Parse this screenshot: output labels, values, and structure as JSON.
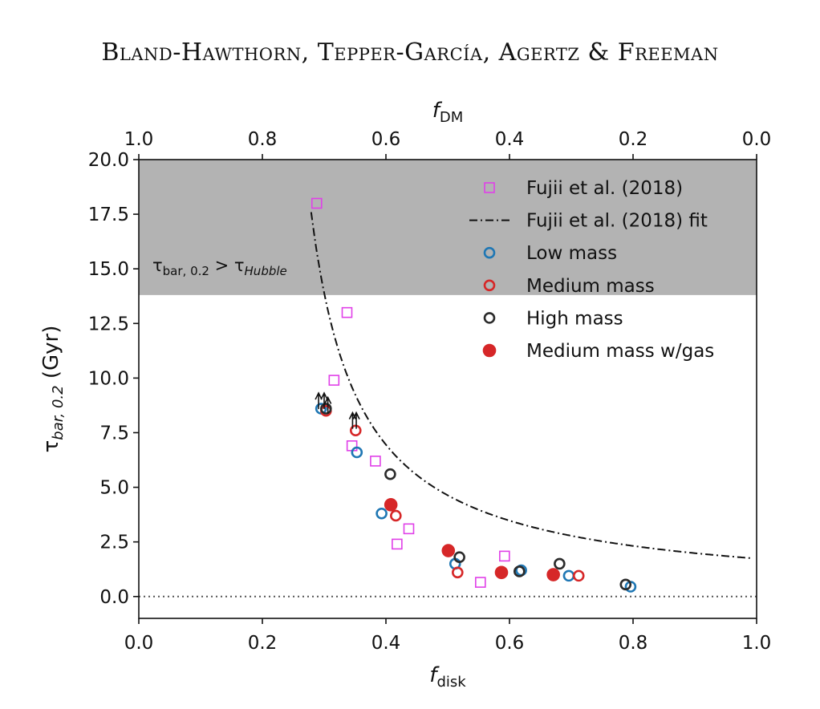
{
  "header": {
    "authors": "Bland-Hawthorn, Tepper-García, Agertz & Freeman"
  },
  "colors": {
    "fujii": "#e040e8",
    "low": "#1f77b4",
    "medium": "#d62728",
    "high": "#2b2b2b",
    "shade": "#b3b3b3"
  },
  "chart_data": {
    "type": "scatter",
    "xlabel": "f",
    "xlabel_sub": "disk",
    "top_xlabel": "f",
    "top_xlabel_sub": "DM",
    "ylabel": "τ",
    "ylabel_sub": "bar, 0.2",
    "ylabel_unit": " (Gyr)",
    "xlim": [
      0.0,
      1.0
    ],
    "ylim": [
      -1.0,
      20.0
    ],
    "xticks": [
      "0.0",
      "0.2",
      "0.4",
      "0.6",
      "0.8",
      "1.0"
    ],
    "top_xticks": [
      "1.0",
      "0.8",
      "0.6",
      "0.4",
      "0.2",
      "0.0"
    ],
    "yticks": [
      "0.0",
      "2.5",
      "5.0",
      "7.5",
      "10.0",
      "12.5",
      "15.0",
      "17.5",
      "20.0"
    ],
    "shaded_region": {
      "y_from": 13.8,
      "y_to": 20.0,
      "label_main": "τ",
      "label_main_sub": "bar, 0.2",
      "label_rel": " > τ",
      "label_rel_sub": "Hubble"
    },
    "reference_line": {
      "y": 0.0,
      "style": "dotted"
    },
    "legend_position": "upper right",
    "series": [
      {
        "name": "Fujii et al. (2018)",
        "marker": "open-square",
        "points": [
          [
            0.288,
            18.0
          ],
          [
            0.337,
            13.0
          ],
          [
            0.316,
            9.9
          ],
          [
            0.345,
            6.9
          ],
          [
            0.383,
            6.2
          ],
          [
            0.418,
            2.4
          ],
          [
            0.437,
            3.1
          ],
          [
            0.553,
            0.65
          ],
          [
            0.592,
            1.85
          ]
        ]
      },
      {
        "name": "Fujii et al. (2018) fit",
        "marker": "dash-dot-line",
        "curve": {
          "form": "a / (x - x0)^n",
          "a": 1.39,
          "x0": 0.2,
          "n": 1.0,
          "x_range": [
            0.279,
            0.99
          ]
        }
      },
      {
        "name": "Low mass",
        "marker": "open-circle",
        "points": [
          [
            0.295,
            8.6
          ],
          [
            0.353,
            6.6
          ],
          [
            0.393,
            3.8
          ],
          [
            0.512,
            1.5
          ],
          [
            0.619,
            1.2
          ],
          [
            0.696,
            0.95
          ],
          [
            0.796,
            0.45
          ]
        ]
      },
      {
        "name": "Medium mass",
        "marker": "open-circle",
        "points": [
          [
            0.303,
            8.5
          ],
          [
            0.351,
            7.6
          ],
          [
            0.416,
            3.7
          ],
          [
            0.516,
            1.1
          ],
          [
            0.712,
            0.95
          ]
        ]
      },
      {
        "name": "High mass",
        "marker": "open-circle",
        "points": [
          [
            0.303,
            8.6
          ],
          [
            0.407,
            5.6
          ],
          [
            0.519,
            1.8
          ],
          [
            0.616,
            1.15
          ],
          [
            0.681,
            1.5
          ],
          [
            0.788,
            0.55
          ]
        ]
      },
      {
        "name": "Medium mass w/gas",
        "marker": "filled-circle",
        "points": [
          [
            0.408,
            4.2
          ],
          [
            0.501,
            2.1
          ],
          [
            0.587,
            1.1
          ],
          [
            0.671,
            1.0
          ]
        ]
      }
    ],
    "lower_limit_arrows": [
      [
        0.291,
        8.8
      ],
      [
        0.3,
        8.8
      ],
      [
        0.306,
        8.6
      ],
      [
        0.346,
        7.9
      ],
      [
        0.352,
        7.9
      ]
    ]
  }
}
